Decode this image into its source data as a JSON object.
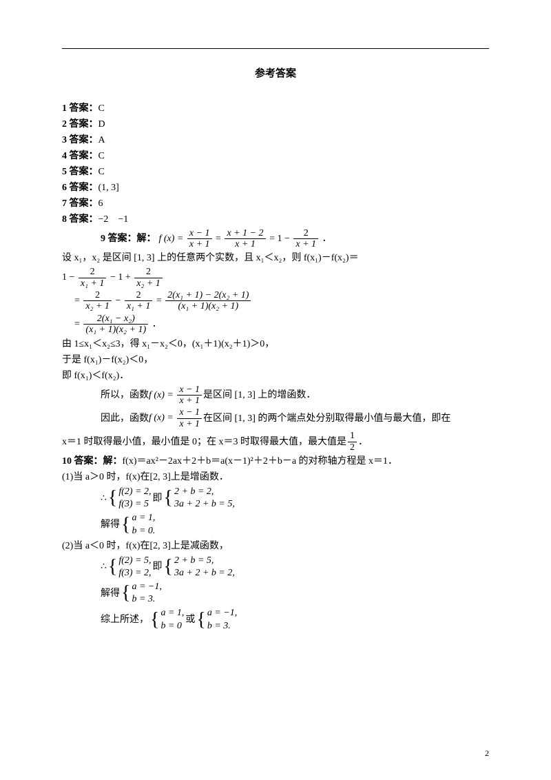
{
  "page": {
    "title": "参考答案",
    "page_number": "2",
    "background_color": "#ffffff",
    "text_color": "#000000",
    "rule_color": "#000000"
  },
  "answers": {
    "a1": "1 答案：",
    "v1": "C",
    "a2": "2 答案：",
    "v2": "D",
    "a3": "3 答案：",
    "v3": "A",
    "a4": "4 答案：",
    "v4": "C",
    "a5": "5 答案：",
    "v5": "C",
    "a6": "6 答案：",
    "v6": "(1, 3]",
    "a7": "7 答案：",
    "v7": "6",
    "a8": "8 答案：",
    "v8": "−2　−1"
  },
  "q9": {
    "label": "9 答案：解：",
    "f_eq_l": "f (x) =",
    "frac1n": "x − 1",
    "frac1d": "x + 1",
    "eq1": "=",
    "frac2n": "x + 1 − 2",
    "frac2d": "x + 1",
    "eq2": "= 1 −",
    "frac3n": "2",
    "frac3d": "x + 1",
    "period": "．",
    "line_set": "设 x₁，x₂ 是区间 [1, 3] 上的任意两个实数，且 x₁＜x₂，则 f(x₁)－f(x₂)＝",
    "lhs1_pre": "1 −",
    "lhs1_f1n": "2",
    "lhs1_f1d": "x₁ + 1",
    "lhs1_mid": "− 1 +",
    "lhs1_f2n": "2",
    "lhs1_f2d": "x₂ + 1",
    "step2_eq": "=",
    "step2_f1n": "2",
    "step2_f1d": "x₂ + 1",
    "step2_minus": "−",
    "step2_f2n": "2",
    "step2_f2d": "x₁ + 1",
    "step2_eq2": "=",
    "step2_big_n": "2(x₁ + 1) − 2(x₂ + 1)",
    "step2_big_d": "(x₁ + 1)(x₂ + 1)",
    "step3_eq": "=",
    "step3_n": "2(x₁ − x₂)",
    "step3_d": "(x₁ + 1)(x₂ + 1)",
    "step3_period": "．",
    "line_by": "由 1≤x₁＜x₂≤3，得 x₁－x₂＜0，(x₁＋1)(x₂＋1)＞0，",
    "line_so1": "于是 f(x₁)－f(x₂)＜0，",
    "line_so2": "即 f(x₁)＜f(x₂)．",
    "line_therefore": "所以，函数",
    "line_therefore_fx": "f (x) =",
    "line_therefore_end": "是区间 [1, 3] 上的增函数．",
    "line_hence": "因此，函数",
    "line_hence_fx": "f (x) =",
    "line_hence_end": " 在区间 [1, 3] 的两个端点处分别取得最小值与最大值，即在",
    "line_final_pre": "x＝1 时取得最小值，最小值是 0；在 x＝3 时取得最大值，最大值是",
    "final_frac_n": "1",
    "final_frac_d": "2",
    "line_final_period": "．"
  },
  "q10": {
    "label": "10 答案：解：",
    "line0": "f(x)＝ax²－2ax＋2＋b＝a(x－1)²＋2＋b－a 的对称轴方程是 x＝1．",
    "case1": "(1)当 a＞0 时，f(x)在[2, 3]上是增函数．",
    "sys1_pre": "∴",
    "sys1_l1": "f(2) = 2,",
    "sys1_l2": "f(3) = 5",
    "sys1_mid": "即",
    "sys1_r1": "2 + b = 2,",
    "sys1_r2": "3a + 2 + b = 5,",
    "solve_label": "解得",
    "sol1_l1": "a = 1,",
    "sol1_l2": "b = 0.",
    "case2": "(2)当 a＜0 时，f(x)在[2, 3]上是减函数，",
    "sys2_pre": "∴",
    "sys2_l1": "f(2) = 5,",
    "sys2_l2": "f(3) = 2,",
    "sys2_mid": "即",
    "sys2_r1": "2 + b = 5,",
    "sys2_r2": "3a + 2 + b = 2,",
    "sol2_l1": "a = −1,",
    "sol2_l2": "b = 3.",
    "summary_pre": "综上所述，",
    "sumA1": "a = 1,",
    "sumA2": "b = 0",
    "or": "或",
    "sumB1": "a = −1,",
    "sumB2": "b = 3."
  }
}
